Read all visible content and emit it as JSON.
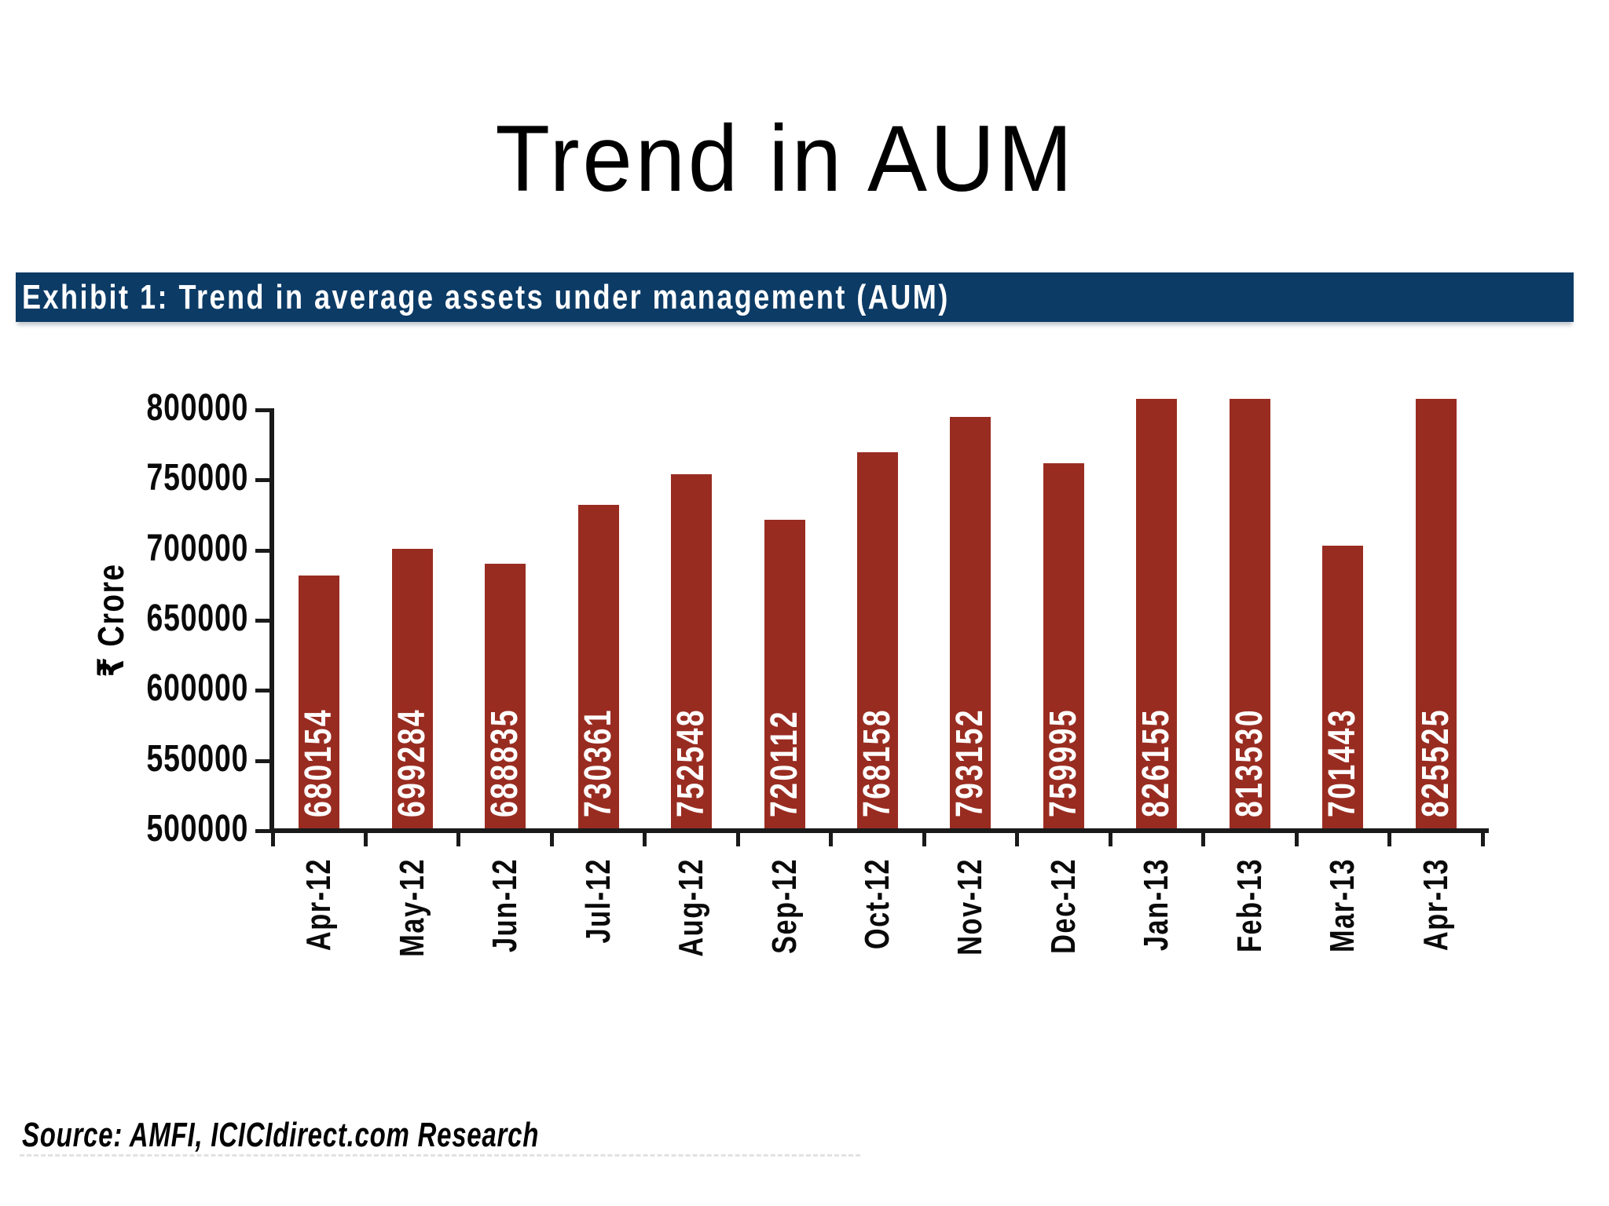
{
  "page": {
    "title": "Trend in AUM"
  },
  "exhibit": {
    "label": "Exhibit 1: Trend in average assets under management (AUM)"
  },
  "source": {
    "text": "Source: AMFI, ICICIdirect.com Research"
  },
  "colors": {
    "bar": "#992C21",
    "header_bg": "#0C3B66",
    "header_text": "#FFFFFF",
    "axis": "#1A1A1A",
    "tick_label": "#0A0A0A",
    "value_label": "#FFFFFF"
  },
  "chart_data": {
    "type": "bar",
    "title": "Exhibit 1: Trend in average assets under management (AUM)",
    "categories": [
      "Apr-12",
      "May-12",
      "Jun-12",
      "Jul-12",
      "Aug-12",
      "Sep-12",
      "Oct-12",
      "Nov-12",
      "Dec-12",
      "Jan-13",
      "Feb-13",
      "Mar-13",
      "Apr-13"
    ],
    "values": [
      680154,
      699284,
      688835,
      730361,
      752548,
      720112,
      768158,
      793152,
      759995,
      826155,
      813530,
      701443,
      825525
    ],
    "ylabel": "₹ Crore",
    "xlabel": "",
    "yticks": [
      500000,
      550000,
      600000,
      650000,
      700000,
      750000,
      800000
    ],
    "ylim": [
      500000,
      806000
    ],
    "grid": false,
    "legend": null,
    "value_labels": "inside-bottom-rotated",
    "note": "Bars above the axis maximum are clipped at the plot top"
  }
}
